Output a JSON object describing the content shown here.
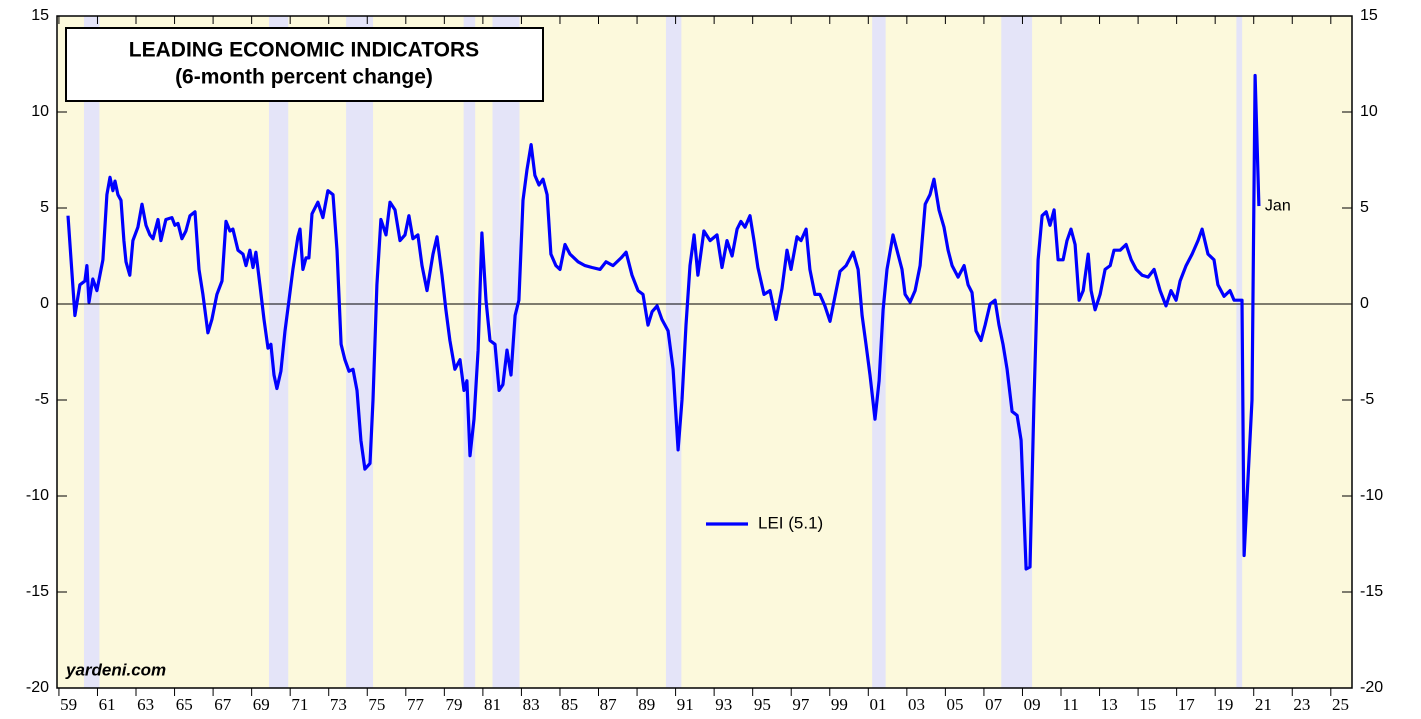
{
  "chart_data": {
    "type": "line",
    "title": "LEADING ECONOMIC INDICATORS",
    "subtitle": "(6-month percent change)",
    "annotation": "Jan",
    "source": "yardeni.com",
    "x": [
      1959.47,
      1959.83,
      1960.09,
      1960.35,
      1960.45,
      1960.56,
      1960.76,
      1960.97,
      1961.28,
      1961.49,
      1961.65,
      1961.8,
      1961.91,
      1962.06,
      1962.22,
      1962.37,
      1962.48,
      1962.68,
      1962.84,
      1963.1,
      1963.31,
      1963.52,
      1963.72,
      1963.88,
      1964.14,
      1964.29,
      1964.55,
      1964.86,
      1965.02,
      1965.18,
      1965.38,
      1965.59,
      1965.8,
      1966.06,
      1966.27,
      1966.47,
      1966.73,
      1966.94,
      1967.2,
      1967.46,
      1967.67,
      1967.87,
      1968.03,
      1968.29,
      1968.55,
      1968.71,
      1968.91,
      1969.07,
      1969.22,
      1969.43,
      1969.64,
      1969.85,
      1970.0,
      1970.16,
      1970.31,
      1970.52,
      1970.73,
      1970.94,
      1971.14,
      1971.4,
      1971.51,
      1971.66,
      1971.82,
      1971.97,
      1972.13,
      1972.44,
      1972.7,
      1972.96,
      1973.22,
      1973.43,
      1973.64,
      1973.84,
      1974.05,
      1974.26,
      1974.47,
      1974.67,
      1974.88,
      1975.14,
      1975.3,
      1975.5,
      1975.71,
      1975.97,
      1976.18,
      1976.44,
      1976.7,
      1976.96,
      1977.16,
      1977.37,
      1977.63,
      1977.84,
      1978.1,
      1978.41,
      1978.62,
      1978.88,
      1979.08,
      1979.29,
      1979.55,
      1979.81,
      1980.02,
      1980.17,
      1980.33,
      1980.54,
      1980.75,
      1980.95,
      1981.16,
      1981.37,
      1981.63,
      1981.84,
      1982.04,
      1982.25,
      1982.46,
      1982.67,
      1982.87,
      1983.08,
      1983.29,
      1983.5,
      1983.7,
      1983.91,
      1984.12,
      1984.33,
      1984.53,
      1984.79,
      1985.0,
      1985.26,
      1985.52,
      1985.94,
      1986.3,
      1986.66,
      1987.08,
      1987.39,
      1987.75,
      1988.17,
      1988.43,
      1988.74,
      1989.05,
      1989.31,
      1989.57,
      1989.78,
      1990.04,
      1990.29,
      1990.61,
      1990.87,
      1991.13,
      1991.33,
      1991.54,
      1991.75,
      1991.96,
      1992.16,
      1992.47,
      1992.79,
      1993.15,
      1993.41,
      1993.67,
      1993.93,
      1994.19,
      1994.39,
      1994.6,
      1994.86,
      1995.07,
      1995.27,
      1995.59,
      1995.9,
      1996.21,
      1996.52,
      1996.78,
      1996.99,
      1997.3,
      1997.51,
      1997.77,
      1997.97,
      1998.23,
      1998.49,
      1998.75,
      1999.01,
      1999.27,
      1999.53,
      1999.85,
      2000.21,
      2000.47,
      2000.68,
      2000.88,
      2001.09,
      2001.35,
      2001.56,
      2001.77,
      2001.97,
      2002.28,
      2002.54,
      2002.75,
      2002.91,
      2003.17,
      2003.43,
      2003.69,
      2003.95,
      2004.2,
      2004.41,
      2004.67,
      2004.93,
      2005.14,
      2005.35,
      2005.66,
      2005.97,
      2006.18,
      2006.38,
      2006.59,
      2006.85,
      2007.06,
      2007.32,
      2007.58,
      2007.78,
      2007.99,
      2008.2,
      2008.46,
      2008.72,
      2008.93,
      2009.19,
      2009.39,
      2009.6,
      2009.81,
      2010.02,
      2010.23,
      2010.43,
      2010.64,
      2010.85,
      2011.11,
      2011.31,
      2011.52,
      2011.73,
      2011.94,
      2012.15,
      2012.41,
      2012.56,
      2012.77,
      2013.03,
      2013.29,
      2013.55,
      2013.75,
      2014.07,
      2014.38,
      2014.64,
      2014.9,
      2015.21,
      2015.52,
      2015.83,
      2016.14,
      2016.45,
      2016.71,
      2016.97,
      2017.18,
      2017.49,
      2017.8,
      2018.11,
      2018.32,
      2018.63,
      2018.94,
      2019.14,
      2019.46,
      2019.77,
      2019.98,
      2020.18,
      2020.39,
      2020.5,
      2020.7,
      2020.91,
      2021.07,
      2021.27
    ],
    "series": [
      {
        "name": "LEI (5.1)",
        "color": "#0000ff",
        "values": [
          4.6,
          -0.6,
          1.0,
          1.2,
          2.0,
          0.1,
          1.3,
          0.7,
          2.3,
          5.7,
          6.6,
          5.9,
          6.4,
          5.7,
          5.4,
          3.3,
          2.2,
          1.5,
          3.3,
          4.0,
          5.2,
          4.1,
          3.6,
          3.4,
          4.4,
          3.3,
          4.4,
          4.5,
          4.1,
          4.2,
          3.4,
          3.8,
          4.6,
          4.8,
          1.8,
          0.5,
          -1.5,
          -0.8,
          0.5,
          1.2,
          4.3,
          3.8,
          3.9,
          2.8,
          2.6,
          2.0,
          2.8,
          1.9,
          2.7,
          1.0,
          -0.8,
          -2.3,
          -2.1,
          -3.7,
          -4.4,
          -3.5,
          -1.4,
          0.2,
          1.8,
          3.5,
          3.9,
          1.8,
          2.4,
          2.4,
          4.7,
          5.3,
          4.5,
          5.9,
          5.7,
          2.8,
          -2.1,
          -2.9,
          -3.5,
          -3.4,
          -4.5,
          -7.1,
          -8.6,
          -8.3,
          -5.0,
          1.0,
          4.4,
          3.6,
          5.3,
          4.9,
          3.3,
          3.6,
          4.6,
          3.4,
          3.6,
          2.0,
          0.7,
          2.6,
          3.5,
          1.5,
          -0.3,
          -1.9,
          -3.4,
          -2.9,
          -4.5,
          -4.0,
          -7.9,
          -6.0,
          -2.4,
          3.7,
          0.2,
          -1.9,
          -2.1,
          -4.5,
          -4.2,
          -2.4,
          -3.7,
          -0.6,
          0.2,
          5.4,
          7.0,
          8.3,
          6.7,
          6.2,
          6.5,
          5.7,
          2.6,
          2.0,
          1.8,
          3.1,
          2.6,
          2.2,
          2.0,
          1.9,
          1.8,
          2.2,
          2.0,
          2.4,
          2.7,
          1.5,
          0.7,
          0.5,
          -1.1,
          -0.4,
          -0.1,
          -0.8,
          -1.4,
          -3.4,
          -7.6,
          -5.0,
          -1.1,
          2.0,
          3.6,
          1.5,
          3.8,
          3.3,
          3.6,
          1.9,
          3.3,
          2.5,
          3.9,
          4.3,
          4.0,
          4.6,
          3.3,
          1.9,
          0.5,
          0.7,
          -0.8,
          0.8,
          2.8,
          1.8,
          3.5,
          3.3,
          3.9,
          1.8,
          0.5,
          0.5,
          -0.1,
          -0.9,
          0.4,
          1.7,
          2.0,
          2.7,
          1.8,
          -0.6,
          -2.1,
          -3.7,
          -6.0,
          -4.0,
          -0.3,
          1.8,
          3.6,
          2.6,
          1.8,
          0.5,
          0.1,
          0.7,
          2.0,
          5.2,
          5.7,
          6.5,
          4.9,
          4.0,
          2.8,
          2.0,
          1.4,
          2.0,
          1.0,
          0.6,
          -1.4,
          -1.9,
          -1.1,
          0.0,
          0.2,
          -1.1,
          -2.1,
          -3.4,
          -5.6,
          -5.8,
          -7.1,
          -13.8,
          -13.7,
          -5.0,
          2.3,
          4.6,
          4.8,
          4.1,
          4.9,
          2.3,
          2.3,
          3.3,
          3.9,
          3.1,
          0.2,
          0.7,
          2.6,
          0.7,
          -0.3,
          0.5,
          1.8,
          2.0,
          2.8,
          2.8,
          3.1,
          2.3,
          1.8,
          1.5,
          1.4,
          1.8,
          0.7,
          -0.1,
          0.7,
          0.2,
          1.2,
          2.0,
          2.6,
          3.3,
          3.9,
          2.6,
          2.3,
          1.0,
          0.4,
          0.7,
          0.2,
          0.2,
          0.2,
          -13.1,
          -9.2,
          -5.0,
          11.9,
          5.1
        ]
      }
    ],
    "recessions": [
      {
        "start": 1960.3,
        "end": 1961.1
      },
      {
        "start": 1969.9,
        "end": 1970.9
      },
      {
        "start": 1973.9,
        "end": 1975.3
      },
      {
        "start": 1980.0,
        "end": 1980.6
      },
      {
        "start": 1981.5,
        "end": 1982.9
      },
      {
        "start": 1990.5,
        "end": 1991.3
      },
      {
        "start": 2001.2,
        "end": 2001.9
      },
      {
        "start": 2007.9,
        "end": 2009.5
      },
      {
        "start": 2020.1,
        "end": 2020.4
      }
    ],
    "xlim": [
      1958.9,
      2026.1
    ],
    "xticks": [
      {
        "value": 1959,
        "label": "59"
      },
      {
        "value": 1961,
        "label": "61"
      },
      {
        "value": 1963,
        "label": "63"
      },
      {
        "value": 1965,
        "label": "65"
      },
      {
        "value": 1967,
        "label": "67"
      },
      {
        "value": 1969,
        "label": "69"
      },
      {
        "value": 1971,
        "label": "71"
      },
      {
        "value": 1973,
        "label": "73"
      },
      {
        "value": 1975,
        "label": "75"
      },
      {
        "value": 1977,
        "label": "77"
      },
      {
        "value": 1979,
        "label": "79"
      },
      {
        "value": 1981,
        "label": "81"
      },
      {
        "value": 1983,
        "label": "83"
      },
      {
        "value": 1985,
        "label": "85"
      },
      {
        "value": 1987,
        "label": "87"
      },
      {
        "value": 1989,
        "label": "89"
      },
      {
        "value": 1991,
        "label": "91"
      },
      {
        "value": 1993,
        "label": "93"
      },
      {
        "value": 1995,
        "label": "95"
      },
      {
        "value": 1997,
        "label": "97"
      },
      {
        "value": 1999,
        "label": "99"
      },
      {
        "value": 2001,
        "label": "01"
      },
      {
        "value": 2003,
        "label": "03"
      },
      {
        "value": 2005,
        "label": "05"
      },
      {
        "value": 2007,
        "label": "07"
      },
      {
        "value": 2009,
        "label": "09"
      },
      {
        "value": 2011,
        "label": "11"
      },
      {
        "value": 2013,
        "label": "13"
      },
      {
        "value": 2015,
        "label": "15"
      },
      {
        "value": 2017,
        "label": "17"
      },
      {
        "value": 2019,
        "label": "19"
      },
      {
        "value": 2021,
        "label": "21"
      },
      {
        "value": 2023,
        "label": "23"
      },
      {
        "value": 2025,
        "label": "25"
      }
    ],
    "ylim": [
      -20,
      15
    ],
    "yticks": [
      -20,
      -15,
      -10,
      -5,
      0,
      5,
      10,
      15
    ],
    "legend": "center"
  }
}
